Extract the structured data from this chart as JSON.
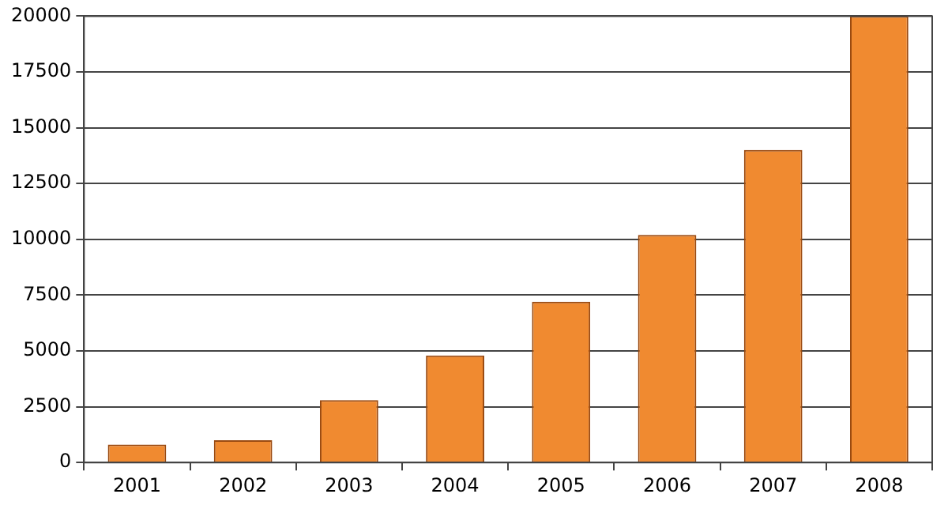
{
  "chart_data": {
    "type": "bar",
    "categories": [
      "2001",
      "2002",
      "2003",
      "2004",
      "2005",
      "2006",
      "2007",
      "2008"
    ],
    "values": [
      800,
      1000,
      2800,
      4800,
      7200,
      10200,
      14000,
      20000
    ],
    "color": "#f08a30",
    "ylim": [
      0,
      20000
    ],
    "yticks": [
      0,
      2500,
      5000,
      7500,
      10000,
      12500,
      15000,
      17500,
      20000
    ],
    "grid": "y",
    "legend": false
  }
}
